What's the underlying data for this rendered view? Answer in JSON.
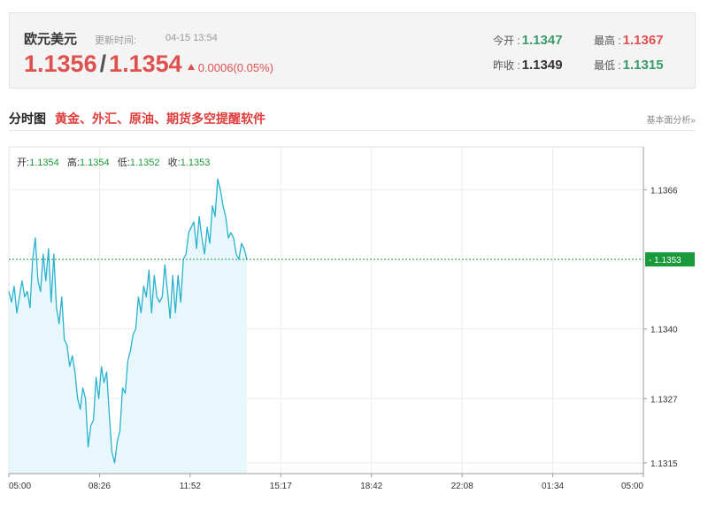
{
  "quote": {
    "pair_name": "欧元美元",
    "update_label": "更新时间:",
    "update_time": "04-15 13:54",
    "bid": "1.1356",
    "separator": "/",
    "ask": "1.1354",
    "change": "0.0006(0.05%)",
    "open_label": "今开 :",
    "open_value": "1.1347",
    "prev_close_label": "昨收 :",
    "prev_close_value": "1.1349",
    "high_label": "最高 :",
    "high_value": "1.1367",
    "low_label": "最低 :",
    "low_value": "1.1315"
  },
  "section": {
    "title": "分时图",
    "promo": "黄金、外汇、原油、期货多空提醒软件",
    "analysis_link": "基本面分析»"
  },
  "ohlc": {
    "open_label": "开:",
    "open": "1.1354",
    "high_label": "高:",
    "high": "1.1354",
    "low_label": "低:",
    "low": "1.1352",
    "close_label": "收:",
    "close": "1.1353"
  },
  "colors": {
    "line": "#29b2cf",
    "area": "#e8f7fb",
    "up": "#e0504f",
    "down": "#3a9b6a",
    "current_price": "#1a9a3a"
  },
  "chart_data": {
    "type": "area",
    "title": "",
    "xlabel": "",
    "ylabel": "",
    "x_ticks": [
      "05:00",
      "08:26",
      "11:52",
      "15:17",
      "18:42",
      "22:08",
      "01:34",
      "05:00"
    ],
    "y_ticks": [
      1.1366,
      1.134,
      1.1327,
      1.1315
    ],
    "ylim": [
      1.1313,
      1.1374
    ],
    "x_range_hours": [
      0,
      24
    ],
    "current_price": 1.1353,
    "current_price_label": "1.1353",
    "grid": true,
    "series": [
      {
        "x": [
          0.0,
          0.1,
          0.2,
          0.3,
          0.4,
          0.5,
          0.6,
          0.7,
          0.8,
          0.9,
          1.0,
          1.1,
          1.2,
          1.3,
          1.4,
          1.5,
          1.6,
          1.7,
          1.8,
          1.9,
          2.0,
          2.1,
          2.2,
          2.3,
          2.4,
          2.5,
          2.6,
          2.7,
          2.8,
          2.9,
          3.0,
          3.1,
          3.2,
          3.3,
          3.4,
          3.5,
          3.6,
          3.7,
          3.8,
          3.9,
          4.0,
          4.1,
          4.2,
          4.3,
          4.4,
          4.5,
          4.6,
          4.7,
          4.8,
          4.9,
          5.0,
          5.1,
          5.2,
          5.3,
          5.4,
          5.5,
          5.6,
          5.7,
          5.8,
          5.9,
          6.0,
          6.1,
          6.2,
          6.3,
          6.4,
          6.5,
          6.6,
          6.7,
          6.8,
          6.9,
          7.0,
          7.1,
          7.2,
          7.3,
          7.4,
          7.5,
          7.6,
          7.7,
          7.8,
          7.9,
          8.0,
          8.1,
          8.2,
          8.3,
          8.4,
          8.5,
          8.6,
          8.7,
          8.8,
          8.9,
          9.0
        ],
        "values": [
          1.1347,
          1.1345,
          1.1348,
          1.1343,
          1.1346,
          1.1349,
          1.1346,
          1.1347,
          1.1344,
          1.1353,
          1.1357,
          1.1349,
          1.1347,
          1.1354,
          1.1349,
          1.1355,
          1.1345,
          1.1354,
          1.1344,
          1.1341,
          1.1346,
          1.1338,
          1.1337,
          1.1333,
          1.1335,
          1.1332,
          1.1327,
          1.1325,
          1.1329,
          1.1327,
          1.1318,
          1.1322,
          1.1323,
          1.1331,
          1.1327,
          1.1333,
          1.133,
          1.1332,
          1.1324,
          1.1317,
          1.1315,
          1.1319,
          1.1321,
          1.1329,
          1.1328,
          1.1334,
          1.1336,
          1.1339,
          1.134,
          1.1346,
          1.1343,
          1.1348,
          1.1346,
          1.1351,
          1.1343,
          1.135,
          1.1346,
          1.1345,
          1.1346,
          1.1352,
          1.1347,
          1.1342,
          1.135,
          1.1343,
          1.135,
          1.1345,
          1.1353,
          1.1354,
          1.1358,
          1.1359,
          1.136,
          1.1355,
          1.1361,
          1.1357,
          1.1354,
          1.1359,
          1.1356,
          1.1363,
          1.1361,
          1.1368,
          1.1366,
          1.1363,
          1.1361,
          1.1357,
          1.1358,
          1.1357,
          1.1354,
          1.1353,
          1.1356,
          1.1355,
          1.1353
        ]
      }
    ]
  }
}
